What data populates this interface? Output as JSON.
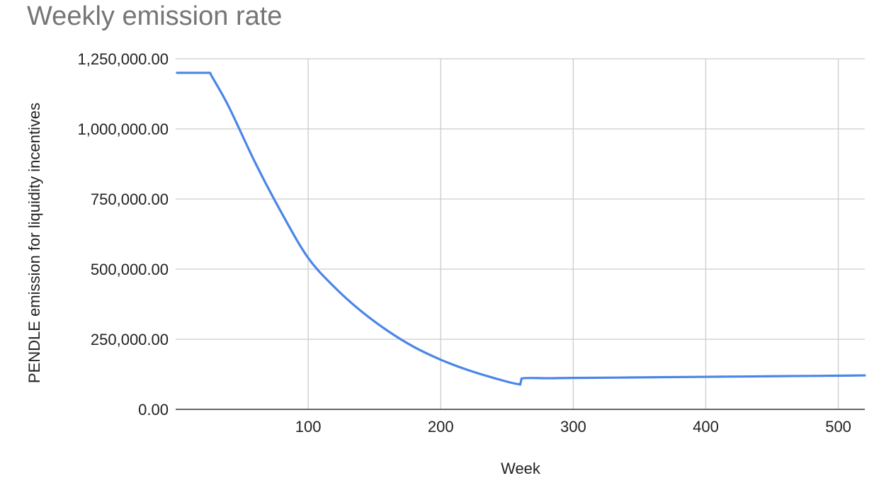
{
  "chart_data": {
    "type": "line",
    "title": "Weekly emission rate",
    "xlabel": "Week",
    "ylabel": "PENDLE emission for liquidity incentives",
    "xlim": [
      0,
      520
    ],
    "ylim": [
      0,
      1250000
    ],
    "x_ticks": [
      100,
      200,
      300,
      400,
      500
    ],
    "x_tick_labels": [
      "100",
      "200",
      "300",
      "400",
      "500"
    ],
    "y_ticks": [
      0,
      250000,
      500000,
      750000,
      1000000,
      1250000
    ],
    "y_tick_labels": [
      "0.00",
      "250,000.00",
      "500,000.00",
      "750,000.00",
      "1,000,000.00",
      "1,250,000.00"
    ],
    "grid": true,
    "legend": "none",
    "series": [
      {
        "color": "#4a86e8",
        "x": [
          1,
          26,
          27,
          40,
          60,
          80,
          100,
          120,
          140,
          160,
          180,
          200,
          220,
          240,
          259,
          260,
          261,
          280,
          300,
          350,
          400,
          450,
          500,
          520
        ],
        "y": [
          1200000,
          1200000,
          1190000,
          1080000,
          880000,
          700000,
          540000,
          435000,
          350000,
          280000,
          222000,
          177000,
          141000,
          112000,
          90000,
          88000,
          110000,
          111000,
          112000,
          114000,
          116000,
          118000,
          120000,
          121000
        ]
      }
    ]
  }
}
